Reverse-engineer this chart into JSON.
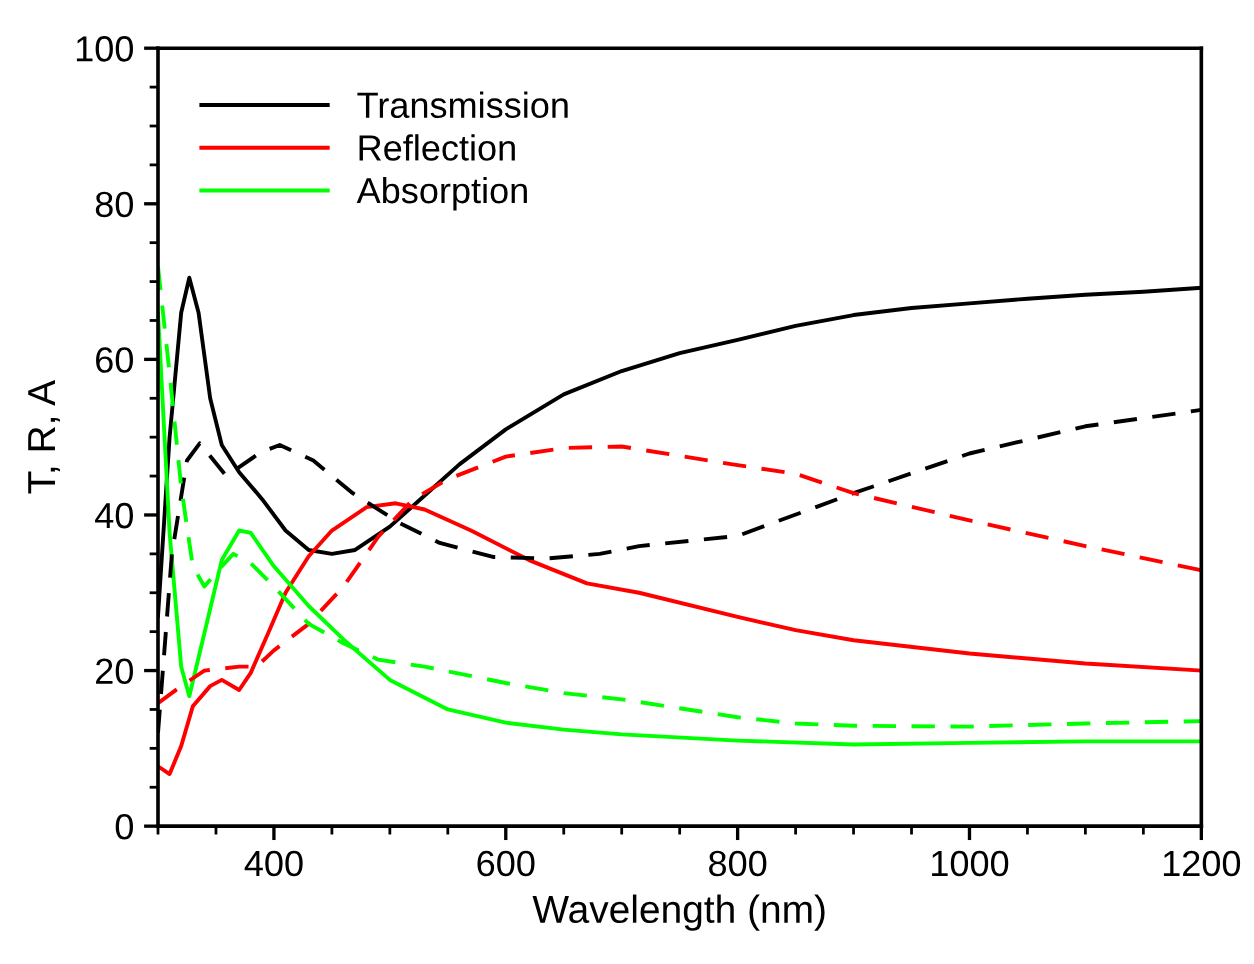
{
  "chart_data": {
    "type": "line",
    "xlabel": "Wavelength (nm)",
    "ylabel": "T, R, A",
    "xlim": [
      300,
      1200
    ],
    "ylim": [
      0,
      100
    ],
    "xticks": [
      {
        "value": 300,
        "label": null
      },
      {
        "value": 350,
        "label": null
      },
      400,
      {
        "value": 450,
        "label": null
      },
      {
        "value": 500,
        "label": null
      },
      {
        "value": 550,
        "label": null
      },
      600,
      {
        "value": 650,
        "label": null
      },
      {
        "value": 700,
        "label": null
      },
      {
        "value": 750,
        "label": null
      },
      800,
      {
        "value": 850,
        "label": null
      },
      {
        "value": 900,
        "label": null
      },
      {
        "value": 950,
        "label": null
      },
      1000,
      {
        "value": 1050,
        "label": null
      },
      {
        "value": 1100,
        "label": null
      },
      {
        "value": 1150,
        "label": null
      },
      1200
    ],
    "yticks": [
      0,
      {
        "value": 5,
        "label": null
      },
      {
        "value": 10,
        "label": null
      },
      {
        "value": 15,
        "label": null
      },
      20,
      {
        "value": 25,
        "label": null
      },
      {
        "value": 30,
        "label": null
      },
      {
        "value": 35,
        "label": null
      },
      40,
      {
        "value": 45,
        "label": null
      },
      {
        "value": 50,
        "label": null
      },
      {
        "value": 55,
        "label": null
      },
      60,
      {
        "value": 65,
        "label": null
      },
      {
        "value": 70,
        "label": null
      },
      {
        "value": 75,
        "label": null
      },
      80,
      {
        "value": 85,
        "label": null
      },
      {
        "value": 90,
        "label": null
      },
      {
        "value": 95,
        "label": null
      },
      100
    ],
    "grid": false,
    "legend": "top left",
    "marker": "none",
    "series": [
      {
        "name": "Transmission",
        "color": "#000000",
        "line_style": "solid",
        "x": [
          300,
          310,
          320,
          327,
          335,
          345,
          355,
          370,
          390,
          410,
          430,
          450,
          470,
          500,
          530,
          560,
          600,
          650,
          700,
          750,
          800,
          850,
          900,
          950,
          1000,
          1050,
          1100,
          1150,
          1200
        ],
        "values": [
          27,
          50,
          66,
          70.5,
          66,
          55,
          49,
          45.5,
          42,
          38,
          35.5,
          35,
          35.5,
          38.5,
          42.5,
          46.5,
          51,
          55.5,
          58.5,
          60.8,
          62.5,
          64.3,
          65.7,
          66.6,
          67.2,
          67.8,
          68.3,
          68.7,
          69.2
        ]
      },
      {
        "name": "Reflection",
        "color": "#ff0000",
        "line_style": "solid",
        "x": [
          300,
          310,
          320,
          330,
          345,
          355,
          370,
          380,
          395,
          410,
          430,
          450,
          480,
          505,
          530,
          570,
          620,
          670,
          715,
          800,
          850,
          900,
          1000,
          1100,
          1200
        ],
        "values": [
          7.7,
          6.7,
          10.3,
          15.4,
          18,
          18.8,
          17.5,
          19.7,
          24.8,
          30,
          34.7,
          38,
          41,
          41.5,
          40.7,
          38,
          34.2,
          31.2,
          30,
          26.9,
          25.2,
          23.9,
          22.2,
          20.9,
          20
        ]
      },
      {
        "name": "Absorption",
        "color": "#00ff00",
        "line_style": "solid",
        "x": [
          300,
          310,
          320,
          327,
          340,
          355,
          370,
          380,
          400,
          430,
          460,
          500,
          550,
          600,
          650,
          700,
          800,
          900,
          1000,
          1100,
          1200
        ],
        "values": [
          65.9,
          37.7,
          20.5,
          16.7,
          24.8,
          34.2,
          38,
          37.7,
          33.4,
          28.3,
          24,
          18.8,
          15,
          13.3,
          12.4,
          11.8,
          11,
          10.5,
          10.7,
          10.9,
          10.9
        ]
      },
      {
        "color": "#000000",
        "line_style": "dashed",
        "x": [
          300,
          312,
          325,
          336,
          359,
          388,
          405,
          434,
          468,
          508,
          543,
          589,
          635,
          681,
          715,
          800,
          900,
          1000,
          1100,
          1200
        ],
        "values": [
          12,
          35,
          47,
          49.2,
          45,
          48,
          49,
          47,
          42.8,
          39,
          36.4,
          34.6,
          34.4,
          35,
          36,
          37.3,
          42.8,
          47.9,
          51.4,
          53.5
        ]
      },
      {
        "color": "#ff0000",
        "line_style": "dashed",
        "x": [
          300,
          320,
          340,
          370,
          385,
          400,
          430,
          460,
          490,
          520,
          550,
          600,
          650,
          700,
          800,
          850,
          900,
          1000,
          1100,
          1200
        ],
        "values": [
          15.8,
          18,
          20,
          20.5,
          20.5,
          22.6,
          26,
          30.8,
          37.2,
          42,
          44.6,
          47.5,
          48.6,
          48.8,
          46.4,
          45.3,
          42.8,
          39.3,
          36,
          32.9
        ]
      },
      {
        "color": "#00ff00",
        "line_style": "dashed",
        "x": [
          300,
          310,
          320,
          330,
          340,
          355,
          365,
          380,
          400,
          430,
          460,
          490,
          530,
          600,
          650,
          700,
          800,
          850,
          900,
          1000,
          1100,
          1200
        ],
        "values": [
          71.9,
          58.2,
          43.6,
          33.4,
          30.8,
          33.4,
          35,
          33.8,
          30.8,
          26,
          23.5,
          21.4,
          20.5,
          18.4,
          17.1,
          16.3,
          14,
          13.2,
          12.9,
          12.8,
          13.2,
          13.5
        ]
      }
    ]
  }
}
